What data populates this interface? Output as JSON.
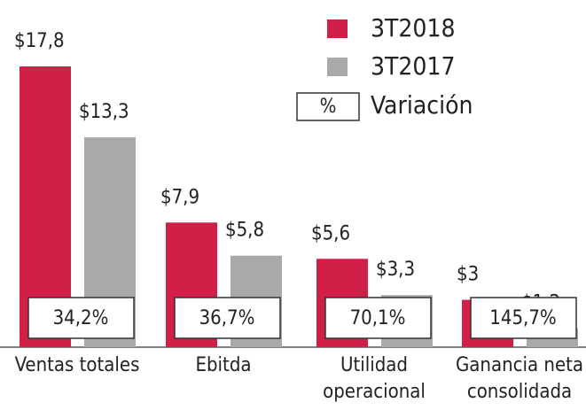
{
  "chart_data": {
    "type": "bar",
    "categories": [
      "Ventas totales",
      "Ebitda",
      "Utilidad operacional",
      "Ganancia neta consolidada"
    ],
    "series": [
      {
        "name": "3T2018",
        "color": "#d21f48",
        "values": [
          17.8,
          7.9,
          5.6,
          3
        ],
        "value_labels": [
          "$17,8",
          "$7,9",
          "$5,6",
          "$3"
        ]
      },
      {
        "name": "3T2017",
        "color": "#a9a9a9",
        "values": [
          13.3,
          5.8,
          3.3,
          1.2
        ],
        "value_labels": [
          "$13,3",
          "$5,8",
          "$3,3",
          "$1,2"
        ]
      }
    ],
    "variation": {
      "symbol": "%",
      "name": "Variación",
      "values": [
        34.2,
        36.7,
        70.1,
        145.7
      ],
      "value_labels": [
        "34,2%",
        "36,7%",
        "70,1%",
        "145,7%"
      ]
    }
  }
}
